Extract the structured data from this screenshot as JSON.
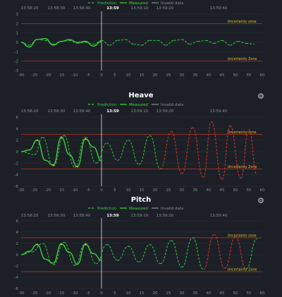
{
  "legend": {
    "prediction": "Prediction",
    "measured": "Measured",
    "invalid": "Invalid data"
  },
  "zone_label_upper": "Uncertainty zone",
  "zone_label_lower": "Uncertainty Zone",
  "time_ticks": [
    "13:58:20",
    "13:58:30",
    "13:58:40",
    "13:59",
    "13:59:10",
    "13:59:20",
    "13:59:40"
  ],
  "panels": [
    {
      "id": "roll",
      "title": "",
      "show_gear": false
    },
    {
      "id": "heave",
      "title": "Heave",
      "show_gear": true
    },
    {
      "id": "pitch",
      "title": "Pitch",
      "show_gear": true
    }
  ],
  "colors": {
    "background": "#1c2026",
    "prediction": "#2ecc40",
    "measured": "#3ddc3d",
    "invalid": "#8a8f96",
    "zone_line": "#c0392b",
    "high_amp": "#e0302a",
    "mid_amp": "#e6c229",
    "now_line": "#ffffff",
    "grid": "#2a2f36"
  },
  "chart_data": [
    {
      "type": "line",
      "name": "roll",
      "title": "",
      "x_ticks": [
        -30,
        -25,
        -20,
        -15,
        -10,
        -5,
        0,
        5,
        10,
        15,
        20,
        25,
        30,
        35,
        40,
        45,
        50,
        55,
        60
      ],
      "y_ticks": [
        3,
        2,
        1,
        0,
        -1,
        -2,
        -3
      ],
      "xlim": [
        -30,
        60
      ],
      "ylim": [
        -3,
        3
      ],
      "uncertainty_bounds": [
        2,
        -2
      ],
      "series": [
        {
          "name": "Prediction",
          "x": [
            -30,
            -27,
            -24,
            -21,
            -18,
            -15,
            -12,
            -9,
            -6,
            -3,
            0,
            3,
            6,
            9,
            12,
            15,
            18,
            21,
            24,
            27,
            30,
            33,
            36,
            39,
            42,
            45,
            48,
            51,
            54,
            57
          ],
          "y": [
            0.0,
            -0.3,
            0.3,
            0.2,
            -0.2,
            0.1,
            0.2,
            -0.1,
            0.0,
            -0.2,
            0.2,
            -0.3,
            0.2,
            0.3,
            -0.2,
            -0.3,
            0.2,
            0.2,
            -0.3,
            0.2,
            0.3,
            -0.2,
            0.1,
            0.2,
            -0.1,
            0.2,
            -0.3,
            0.1,
            -0.1,
            -0.2
          ]
        },
        {
          "name": "Measured",
          "x": [
            -30,
            -27,
            -24,
            -21,
            -18,
            -15,
            -12,
            -9,
            -6,
            -3,
            0
          ],
          "y": [
            0.0,
            -0.5,
            0.3,
            0.4,
            -0.3,
            0.1,
            0.3,
            0.0,
            0.1,
            -0.4,
            0.1
          ]
        }
      ]
    },
    {
      "type": "line",
      "name": "heave",
      "title": "Heave",
      "x_ticks": [
        -30,
        -25,
        -20,
        -15,
        -10,
        -5,
        0,
        5,
        10,
        15,
        20,
        25,
        30,
        35,
        40,
        45,
        50,
        55,
        60
      ],
      "y_ticks": [
        6,
        4,
        2,
        0,
        -2,
        -4,
        -6
      ],
      "xlim": [
        -30,
        60
      ],
      "ylim": [
        -6,
        6
      ],
      "uncertainty_bounds": [
        3,
        -3
      ],
      "series": [
        {
          "name": "Prediction",
          "x": [
            -30,
            -25,
            -22,
            -18,
            -14,
            -10,
            -6,
            -2,
            2,
            6,
            10,
            14,
            18,
            22,
            26,
            30,
            34,
            38,
            41,
            45,
            48,
            52,
            55,
            58
          ],
          "y": [
            0.0,
            -0.5,
            2.5,
            -2.5,
            2.8,
            -2.7,
            2.5,
            -2.0,
            1.5,
            -1.5,
            2.0,
            -2.2,
            2.8,
            -3.0,
            3.5,
            -3.8,
            4.2,
            -4.5,
            5.2,
            -4.8,
            4.5,
            -4.6,
            3.8,
            -4.0
          ]
        },
        {
          "name": "Measured",
          "x": [
            -30,
            -27,
            -24,
            -21,
            -18,
            -15,
            -12,
            -9,
            -6,
            -3,
            0
          ],
          "y": [
            0.0,
            0.3,
            2.0,
            -1.5,
            -2.3,
            2.5,
            -0.5,
            -2.6,
            2.2,
            0.8,
            -1.6
          ]
        }
      ]
    },
    {
      "type": "line",
      "name": "pitch",
      "title": "Pitch",
      "x_ticks": [
        -30,
        -25,
        -20,
        -15,
        -10,
        -5,
        0,
        5,
        10,
        15,
        20,
        25,
        30,
        35,
        40,
        45,
        50,
        55,
        60
      ],
      "y_ticks": [
        6,
        4,
        2,
        0,
        -2,
        -4,
        -6
      ],
      "xlim": [
        -30,
        60
      ],
      "ylim": [
        -6,
        6
      ],
      "uncertainty_bounds": [
        3,
        -3
      ],
      "series": [
        {
          "name": "Prediction",
          "x": [
            -30,
            -26,
            -22,
            -18,
            -14,
            -10,
            -6,
            -2,
            2,
            6,
            10,
            14,
            18,
            22,
            26,
            30,
            34,
            38,
            42,
            46,
            50,
            54,
            58
          ],
          "y": [
            0.0,
            0.5,
            2.0,
            -1.8,
            2.2,
            -1.9,
            2.0,
            -1.6,
            1.8,
            -1.0,
            1.5,
            -1.3,
            1.8,
            -1.6,
            2.5,
            -2.2,
            3.0,
            -2.6,
            3.6,
            -2.4,
            3.2,
            -2.5,
            2.8
          ]
        },
        {
          "name": "Measured",
          "x": [
            -30,
            -27,
            -24,
            -21,
            -18,
            -15,
            -12,
            -9,
            -6,
            -3,
            0
          ],
          "y": [
            0.0,
            0.6,
            1.8,
            -0.8,
            -1.5,
            1.9,
            0.4,
            -1.7,
            1.8,
            0.2,
            -1.0
          ]
        }
      ]
    }
  ]
}
